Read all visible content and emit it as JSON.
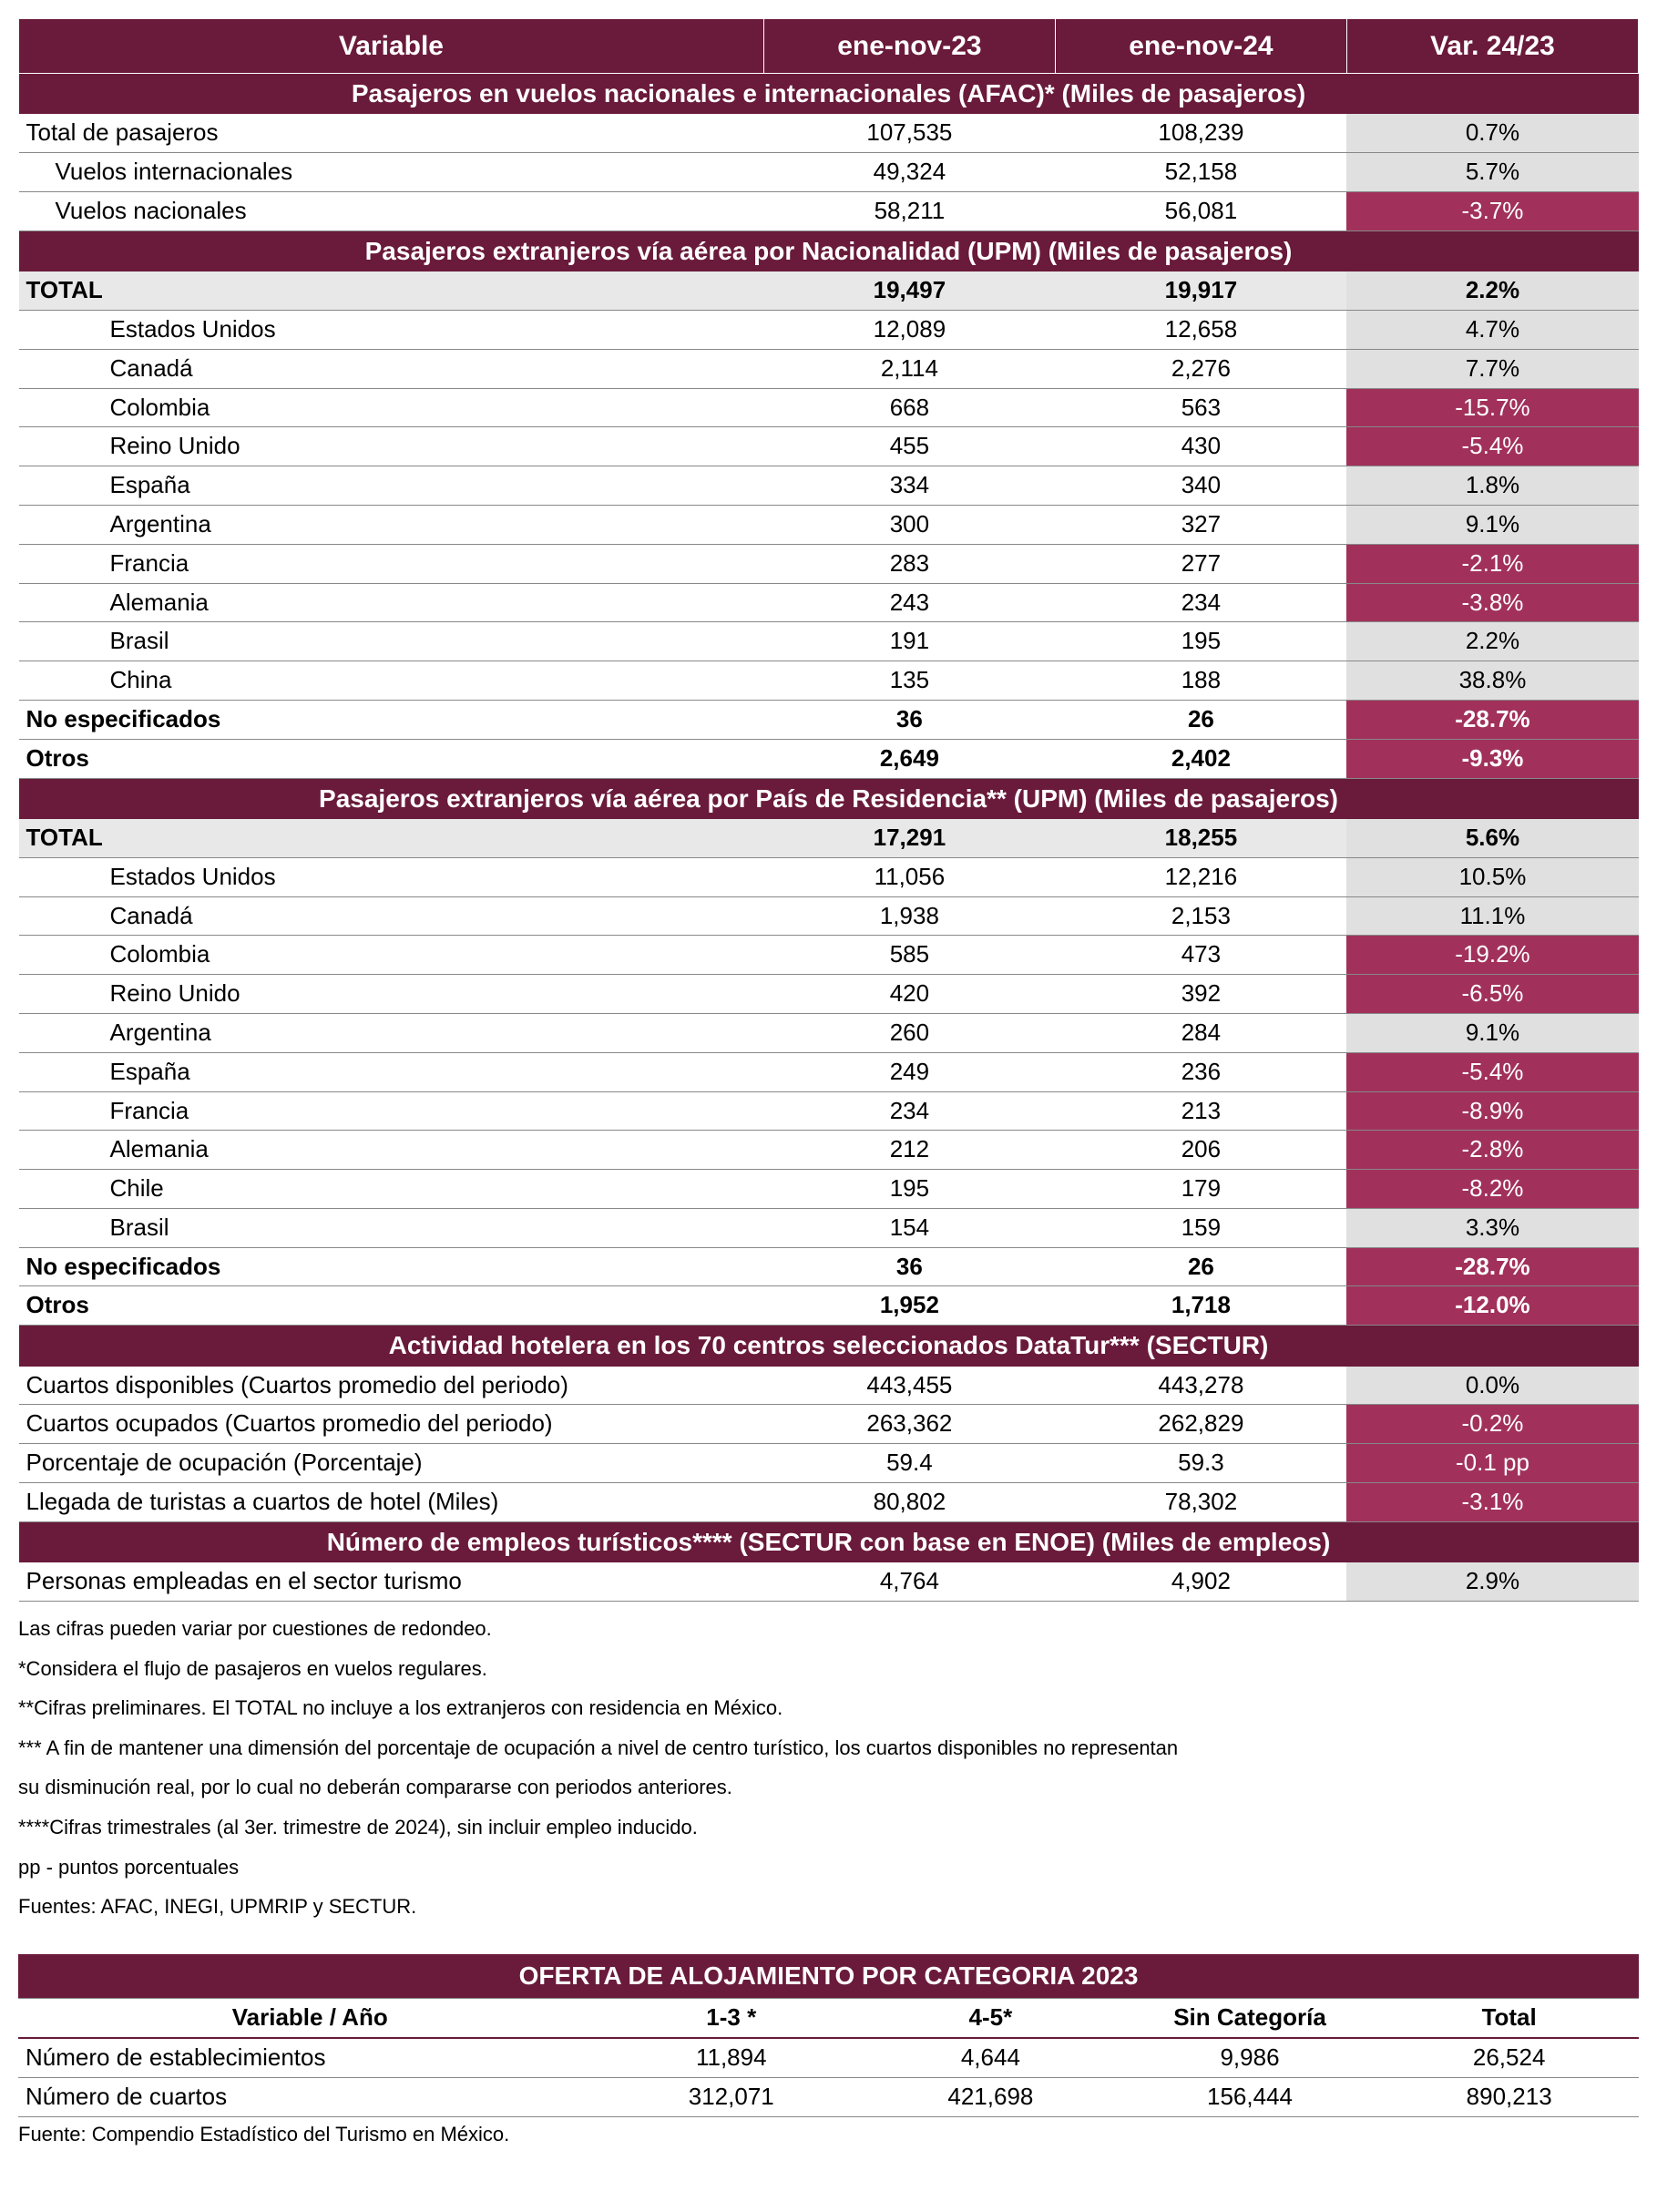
{
  "columns": {
    "variable": "Variable",
    "c1": "ene-nov-23",
    "c2": "ene-nov-24",
    "c3": "Var. 24/23"
  },
  "sections": [
    {
      "title": "Pasajeros en vuelos nacionales e internacionales (AFAC)* (Miles de pasajeros)",
      "rows": [
        {
          "label": "Total de pasajeros",
          "indent": 0,
          "bold": false,
          "v1": "107,535",
          "v2": "108,239",
          "var": "0.7%",
          "neg": false
        },
        {
          "label": "Vuelos internacionales",
          "indent": 1,
          "bold": false,
          "v1": "49,324",
          "v2": "52,158",
          "var": "5.7%",
          "neg": false
        },
        {
          "label": "Vuelos nacionales",
          "indent": 1,
          "bold": false,
          "v1": "58,211",
          "v2": "56,081",
          "var": "-3.7%",
          "neg": true
        }
      ]
    },
    {
      "title": "Pasajeros extranjeros vía aérea por Nacionalidad (UPM) (Miles de pasajeros)",
      "rows": [
        {
          "label": "TOTAL",
          "indent": 0,
          "bold": true,
          "shade": true,
          "v1": "19,497",
          "v2": "19,917",
          "var": "2.2%",
          "neg": false
        },
        {
          "label": "Estados Unidos",
          "indent": 2,
          "v1": "12,089",
          "v2": "12,658",
          "var": "4.7%",
          "neg": false
        },
        {
          "label": "Canadá",
          "indent": 2,
          "v1": "2,114",
          "v2": "2,276",
          "var": "7.7%",
          "neg": false
        },
        {
          "label": "Colombia",
          "indent": 2,
          "v1": "668",
          "v2": "563",
          "var": "-15.7%",
          "neg": true
        },
        {
          "label": "Reino Unido",
          "indent": 2,
          "v1": "455",
          "v2": "430",
          "var": "-5.4%",
          "neg": true
        },
        {
          "label": "España",
          "indent": 2,
          "v1": "334",
          "v2": "340",
          "var": "1.8%",
          "neg": false
        },
        {
          "label": "Argentina",
          "indent": 2,
          "v1": "300",
          "v2": "327",
          "var": "9.1%",
          "neg": false
        },
        {
          "label": "Francia",
          "indent": 2,
          "v1": "283",
          "v2": "277",
          "var": "-2.1%",
          "neg": true
        },
        {
          "label": "Alemania",
          "indent": 2,
          "v1": "243",
          "v2": "234",
          "var": "-3.8%",
          "neg": true
        },
        {
          "label": "Brasil",
          "indent": 2,
          "v1": "191",
          "v2": "195",
          "var": "2.2%",
          "neg": false
        },
        {
          "label": "China",
          "indent": 2,
          "v1": "135",
          "v2": "188",
          "var": "38.8%",
          "neg": false
        },
        {
          "label": "No especificados",
          "indent": 0,
          "bold": true,
          "v1": "36",
          "v2": "26",
          "var": "-28.7%",
          "neg": true
        },
        {
          "label": "Otros",
          "indent": 0,
          "bold": true,
          "v1": "2,649",
          "v2": "2,402",
          "var": "-9.3%",
          "neg": true
        }
      ]
    },
    {
      "title": "Pasajeros extranjeros vía aérea por País de Residencia** (UPM) (Miles de pasajeros)",
      "rows": [
        {
          "label": "TOTAL",
          "indent": 0,
          "bold": true,
          "shade": true,
          "v1": "17,291",
          "v2": "18,255",
          "var": "5.6%",
          "neg": false
        },
        {
          "label": "Estados Unidos",
          "indent": 2,
          "v1": "11,056",
          "v2": "12,216",
          "var": "10.5%",
          "neg": false
        },
        {
          "label": "Canadá",
          "indent": 2,
          "v1": "1,938",
          "v2": "2,153",
          "var": "11.1%",
          "neg": false
        },
        {
          "label": "Colombia",
          "indent": 2,
          "v1": "585",
          "v2": "473",
          "var": "-19.2%",
          "neg": true
        },
        {
          "label": "Reino Unido",
          "indent": 2,
          "v1": "420",
          "v2": "392",
          "var": "-6.5%",
          "neg": true
        },
        {
          "label": "Argentina",
          "indent": 2,
          "v1": "260",
          "v2": "284",
          "var": "9.1%",
          "neg": false
        },
        {
          "label": "España",
          "indent": 2,
          "v1": "249",
          "v2": "236",
          "var": "-5.4%",
          "neg": true
        },
        {
          "label": "Francia",
          "indent": 2,
          "v1": "234",
          "v2": "213",
          "var": "-8.9%",
          "neg": true
        },
        {
          "label": "Alemania",
          "indent": 2,
          "v1": "212",
          "v2": "206",
          "var": "-2.8%",
          "neg": true
        },
        {
          "label": "Chile",
          "indent": 2,
          "v1": "195",
          "v2": "179",
          "var": "-8.2%",
          "neg": true
        },
        {
          "label": "Brasil",
          "indent": 2,
          "v1": "154",
          "v2": "159",
          "var": "3.3%",
          "neg": false
        },
        {
          "label": "No especificados",
          "indent": 0,
          "bold": true,
          "v1": "36",
          "v2": "26",
          "var": "-28.7%",
          "neg": true
        },
        {
          "label": "Otros",
          "indent": 0,
          "bold": true,
          "v1": "1,952",
          "v2": "1,718",
          "var": "-12.0%",
          "neg": true
        }
      ]
    },
    {
      "title": "Actividad hotelera en los 70 centros seleccionados DataTur*** (SECTUR)",
      "rows": [
        {
          "label": "Cuartos disponibles (Cuartos promedio del periodo)",
          "indent": 0,
          "v1": "443,455",
          "v2": "443,278",
          "var": "0.0%",
          "neg": false
        },
        {
          "label": "Cuartos ocupados (Cuartos promedio del periodo)",
          "indent": 0,
          "v1": "263,362",
          "v2": "262,829",
          "var": "-0.2%",
          "neg": true
        },
        {
          "label": "Porcentaje de ocupación (Porcentaje)",
          "indent": 0,
          "v1": "59.4",
          "v2": "59.3",
          "var": "-0.1 pp",
          "neg": true
        },
        {
          "label": "Llegada de turistas a cuartos de hotel (Miles)",
          "indent": 0,
          "v1": "80,802",
          "v2": "78,302",
          "var": "-3.1%",
          "neg": true
        }
      ]
    },
    {
      "title": "Número de empleos turísticos**** (SECTUR con base en ENOE) (Miles de empleos)",
      "rows": [
        {
          "label": "Personas empleadas en el sector turismo",
          "indent": 0,
          "v1": "4,764",
          "v2": "4,902",
          "var": "2.9%",
          "neg": false
        }
      ]
    }
  ],
  "notes": [
    "Las cifras pueden variar por cuestiones de redondeo.",
    "*Considera el flujo de pasajeros en vuelos regulares.",
    "**Cifras preliminares. El TOTAL no  incluye a los extranjeros con residencia en México.",
    "*** A fin de mantener una dimensión del porcentaje de ocupación a nivel de centro turístico, los cuartos disponibles no representan",
    "su disminución real, por lo cual no deberán compararse con periodos anteriores.",
    "****Cifras trimestrales (al 3er. trimestre de 2024), sin incluir empleo inducido.",
    "pp - puntos porcentuales",
    "Fuentes: AFAC, INEGI, UPMRIP y SECTUR."
  ],
  "table2": {
    "title": "OFERTA DE ALOJAMIENTO POR CATEGORIA 2023",
    "headers": [
      "Variable / Año",
      "1-3 *",
      "4-5*",
      "Sin Categoría",
      "Total"
    ],
    "rows": [
      {
        "label": "Número de establecimientos",
        "v": [
          "11,894",
          "4,644",
          "9,986",
          "26,524"
        ]
      },
      {
        "label": "Número de cuartos",
        "v": [
          "312,071",
          "421,698",
          "156,444",
          "890,213"
        ]
      }
    ],
    "source": "Fuente: Compendio Estadístico del Turismo en México."
  },
  "style": {
    "header_bg": "#6a1a3a",
    "neg_bg": "#a1315b",
    "pos_bg": "#e0e0e0",
    "shade_bg": "#e8e8e8",
    "border": "#888888"
  }
}
